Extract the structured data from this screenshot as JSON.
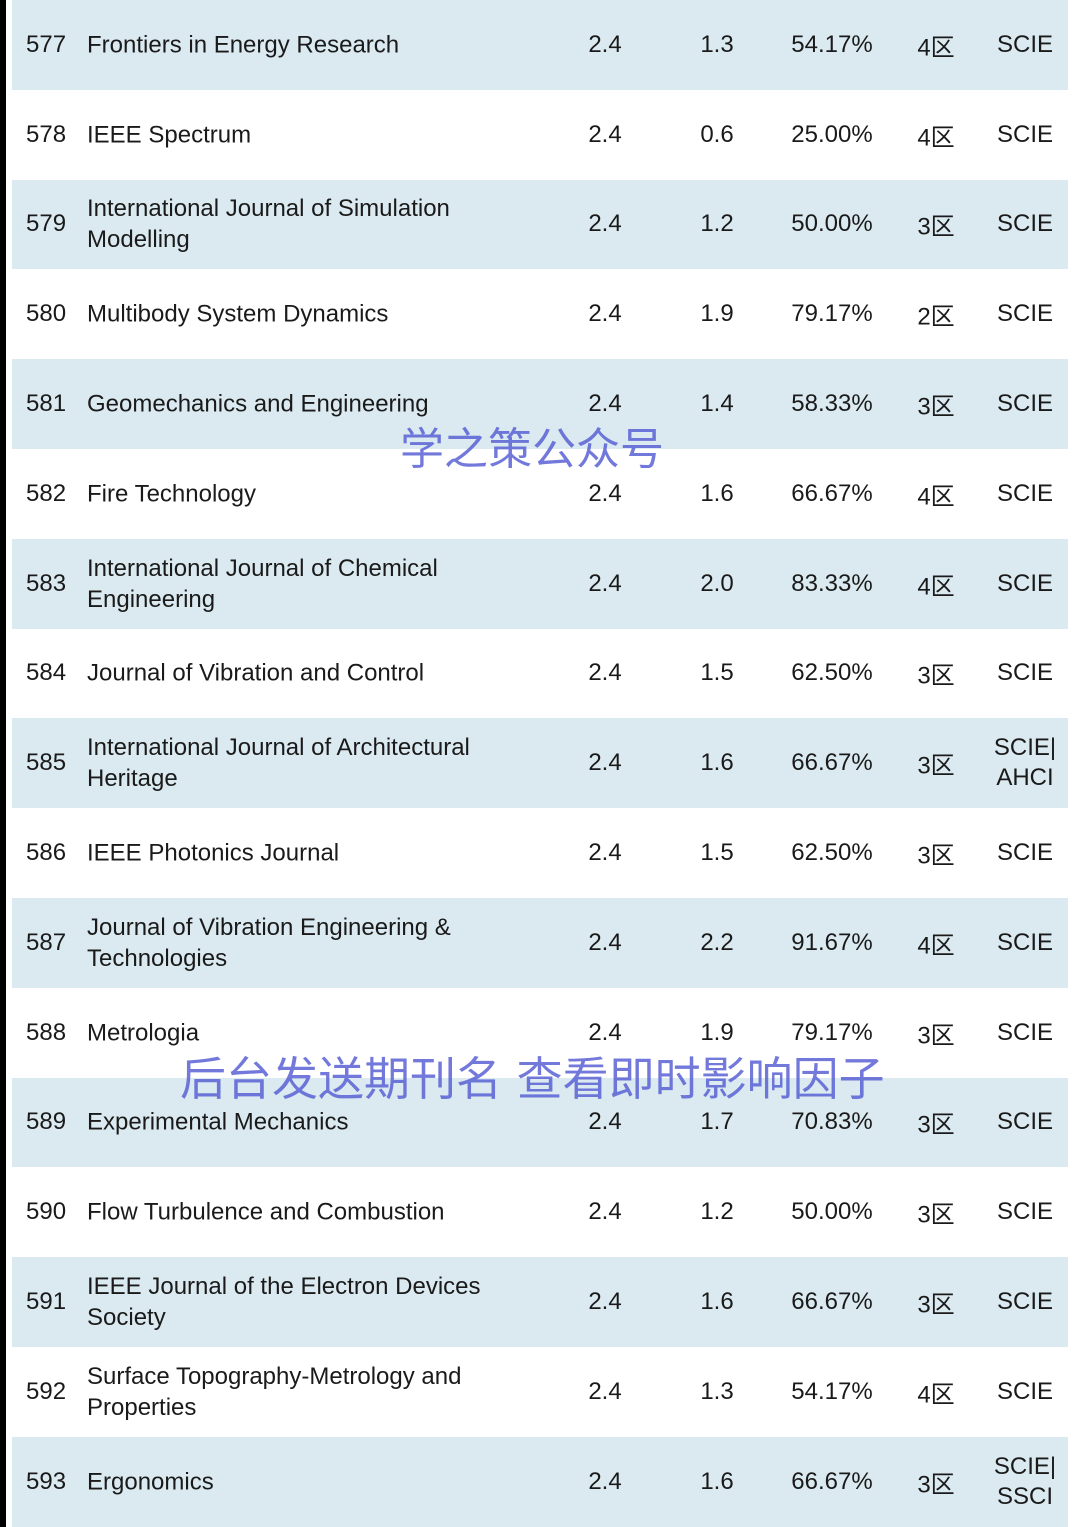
{
  "rows": [
    {
      "rank": "577",
      "name": "Frontiers in Energy Research",
      "if": "2.4",
      "v2": "1.3",
      "pct": "54.17%",
      "zone": "4区",
      "type": "SCIE"
    },
    {
      "rank": "578",
      "name": "IEEE Spectrum",
      "if": "2.4",
      "v2": "0.6",
      "pct": "25.00%",
      "zone": "4区",
      "type": "SCIE"
    },
    {
      "rank": "579",
      "name": "International Journal of Simulation Modelling",
      "if": "2.4",
      "v2": "1.2",
      "pct": "50.00%",
      "zone": "3区",
      "type": "SCIE"
    },
    {
      "rank": "580",
      "name": "Multibody System Dynamics",
      "if": "2.4",
      "v2": "1.9",
      "pct": "79.17%",
      "zone": "2区",
      "type": "SCIE"
    },
    {
      "rank": "581",
      "name": "Geomechanics and Engineering",
      "if": "2.4",
      "v2": "1.4",
      "pct": "58.33%",
      "zone": "3区",
      "type": "SCIE"
    },
    {
      "rank": "582",
      "name": "Fire Technology",
      "if": "2.4",
      "v2": "1.6",
      "pct": "66.67%",
      "zone": "4区",
      "type": "SCIE"
    },
    {
      "rank": "583",
      "name": "International Journal of Chemical Engineering",
      "if": "2.4",
      "v2": "2.0",
      "pct": "83.33%",
      "zone": "4区",
      "type": "SCIE"
    },
    {
      "rank": "584",
      "name": "Journal of Vibration and Control",
      "if": "2.4",
      "v2": "1.5",
      "pct": "62.50%",
      "zone": "3区",
      "type": "SCIE"
    },
    {
      "rank": "585",
      "name": "International Journal of Architectural Heritage",
      "if": "2.4",
      "v2": "1.6",
      "pct": "66.67%",
      "zone": "3区",
      "type": "SCIE| AHCI"
    },
    {
      "rank": "586",
      "name": "IEEE Photonics Journal",
      "if": "2.4",
      "v2": "1.5",
      "pct": "62.50%",
      "zone": "3区",
      "type": "SCIE"
    },
    {
      "rank": "587",
      "name": "Journal of Vibration Engineering & Technologies",
      "if": "2.4",
      "v2": "2.2",
      "pct": "91.67%",
      "zone": "4区",
      "type": "SCIE"
    },
    {
      "rank": "588",
      "name": "Metrologia",
      "if": "2.4",
      "v2": "1.9",
      "pct": "79.17%",
      "zone": "3区",
      "type": "SCIE"
    },
    {
      "rank": "589",
      "name": "Experimental Mechanics",
      "if": "2.4",
      "v2": "1.7",
      "pct": "70.83%",
      "zone": "3区",
      "type": "SCIE"
    },
    {
      "rank": "590",
      "name": "Flow Turbulence and Combustion",
      "if": "2.4",
      "v2": "1.2",
      "pct": "50.00%",
      "zone": "3区",
      "type": "SCIE"
    },
    {
      "rank": "591",
      "name": "IEEE Journal of the Electron Devices Society",
      "if": "2.4",
      "v2": "1.6",
      "pct": "66.67%",
      "zone": "3区",
      "type": "SCIE"
    },
    {
      "rank": "592",
      "name": "Surface Topography-Metrology and Properties",
      "if": "2.4",
      "v2": "1.3",
      "pct": "54.17%",
      "zone": "4区",
      "type": "SCIE"
    },
    {
      "rank": "593",
      "name": "Ergonomics",
      "if": "2.4",
      "v2": "1.6",
      "pct": "66.67%",
      "zone": "3区",
      "type": "SCIE| SSCI"
    }
  ],
  "watermarks": {
    "top": "学之策公众号",
    "bottom": "后台发送期刊名 查看即时影响因子"
  },
  "colors": {
    "row_alt": "#dbeaf1",
    "watermark": "#5058d2"
  }
}
